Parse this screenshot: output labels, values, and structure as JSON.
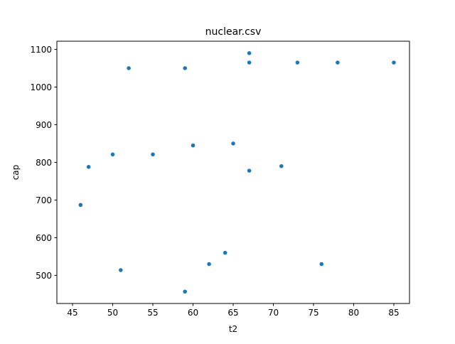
{
  "chart_data": {
    "type": "scatter",
    "title": "nuclear.csv",
    "xlabel": "t2",
    "ylabel": "cap",
    "xlim": [
      43.05,
      86.95
    ],
    "ylim": [
      425.4,
      1121.6
    ],
    "xticks": [
      45,
      50,
      55,
      60,
      65,
      70,
      75,
      80,
      85
    ],
    "yticks": [
      500,
      600,
      700,
      800,
      900,
      1000,
      1100
    ],
    "grid": false,
    "marker_color": "#1f77b4",
    "series": [
      {
        "x": [
          46,
          47,
          50,
          51,
          52,
          55,
          59,
          59,
          60,
          62,
          64,
          65,
          67,
          67,
          67,
          71,
          73,
          76,
          78,
          85
        ],
        "y": [
          687,
          788,
          821,
          514,
          1050,
          821,
          457,
          1050,
          845,
          530,
          560,
          850,
          1090,
          1065,
          778,
          790,
          1065,
          530,
          1065,
          1065
        ]
      }
    ]
  }
}
